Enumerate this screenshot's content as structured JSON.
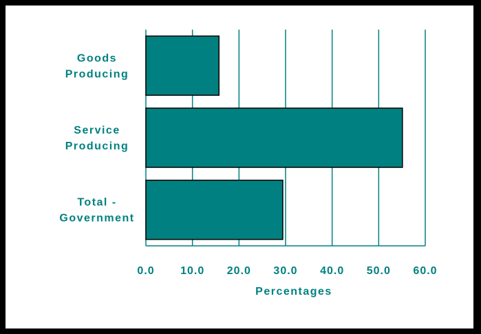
{
  "chart_data": {
    "type": "bar",
    "orientation": "horizontal",
    "categories": [
      [
        "Goods",
        "Producing"
      ],
      [
        "Service",
        "Producing"
      ],
      [
        "Total -",
        "Government"
      ]
    ],
    "values": [
      15.7,
      55.1,
      29.4
    ],
    "xticks": [
      "0.0",
      "10.0",
      "20.0",
      "30.0",
      "40.0",
      "50.0",
      "60.0"
    ],
    "xlim": [
      0,
      60
    ],
    "xlabel": "Percentages",
    "ylabel": "",
    "title": "",
    "grid": "vertical",
    "colors": {
      "bar": "#008080",
      "bar_edge": "#000000",
      "grid": "#008080",
      "text": "#008080",
      "frame": "#000000"
    }
  }
}
